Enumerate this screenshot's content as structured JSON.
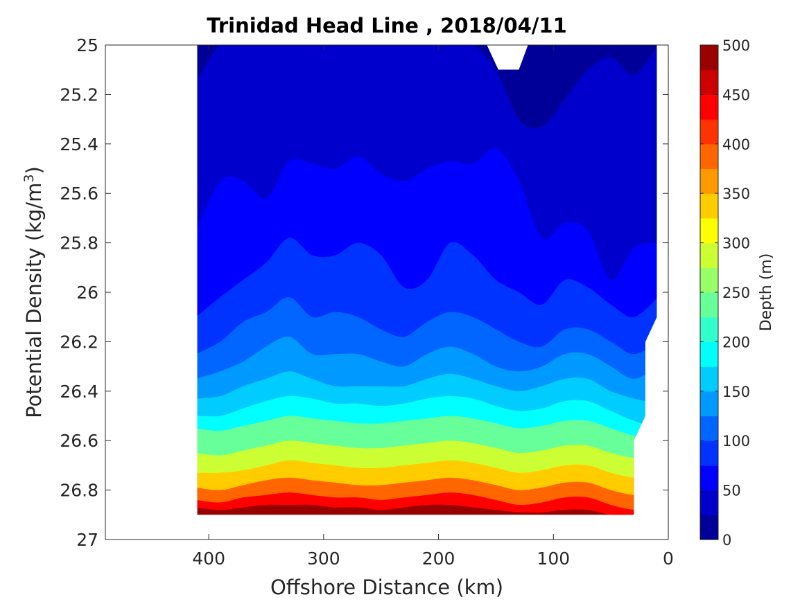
{
  "chart_data": {
    "type": "contour",
    "title": "Trinidad Head Line , 2018/04/11",
    "xlabel": "Offshore Distance (km)",
    "ylabel": "Potential Density (kg/m",
    "ylabel_sup": "3",
    "ylabel_close": ")",
    "xlim": [
      490,
      0
    ],
    "ylim": [
      25,
      27
    ],
    "y_reversed": true,
    "x_reversed": true,
    "x_ticks": [
      "400",
      "300",
      "200",
      "100",
      "0"
    ],
    "y_ticks": [
      "25",
      "25.2",
      "25.4",
      "25.6",
      "25.8",
      "26",
      "26.2",
      "26.4",
      "26.6",
      "26.8",
      "27"
    ],
    "data_extent": {
      "x": [
        410,
        10
      ],
      "y": [
        25,
        26.9
      ]
    },
    "colorbar": {
      "label": "Depth (m)",
      "ticks": [
        "0",
        "50",
        "100",
        "150",
        "200",
        "250",
        "300",
        "350",
        "400",
        "450",
        "500"
      ],
      "range": [
        0,
        500
      ],
      "levels": 20,
      "colormap": "jet"
    },
    "stations_km": [
      410,
      390,
      370,
      350,
      330,
      310,
      290,
      270,
      250,
      230,
      210,
      190,
      170,
      150,
      130,
      110,
      90,
      70,
      50,
      30,
      10
    ],
    "contours": [
      {
        "depth": 25,
        "y": [
          25.15,
          25.0,
          25.0,
          25.0,
          25.0,
          25.0,
          25.0,
          25.0,
          25.0,
          25.0,
          25.0,
          25.0,
          25.0,
          25.1,
          25.3,
          25.33,
          25.22,
          25.1,
          25.05,
          25.12,
          25.0
        ]
      },
      {
        "depth": 50,
        "y": [
          25.75,
          25.55,
          25.55,
          25.62,
          25.47,
          25.48,
          25.5,
          25.45,
          25.52,
          25.55,
          25.5,
          25.47,
          25.48,
          25.42,
          25.55,
          25.78,
          25.72,
          25.75,
          25.95,
          25.82,
          25.8
        ]
      },
      {
        "depth": 75,
        "y": [
          26.1,
          26.02,
          25.95,
          25.88,
          25.78,
          25.85,
          25.85,
          25.8,
          25.85,
          25.98,
          25.95,
          25.8,
          25.85,
          25.95,
          26.0,
          26.05,
          25.95,
          25.98,
          26.05,
          26.1,
          26.02
        ]
      },
      {
        "depth": 100,
        "y": [
          26.25,
          26.2,
          26.12,
          26.08,
          26.02,
          26.1,
          26.08,
          26.1,
          26.15,
          26.18,
          26.12,
          26.08,
          26.1,
          26.15,
          26.2,
          26.22,
          26.15,
          26.15,
          26.2,
          26.25,
          26.2
        ]
      },
      {
        "depth": 125,
        "y": [
          26.35,
          26.32,
          26.28,
          26.22,
          26.18,
          26.25,
          26.25,
          26.25,
          26.28,
          26.3,
          26.25,
          26.22,
          26.25,
          26.3,
          26.32,
          26.3,
          26.25,
          26.25,
          26.3,
          26.35,
          26.3
        ]
      },
      {
        "depth": 150,
        "y": [
          26.43,
          26.42,
          26.38,
          26.35,
          26.32,
          26.35,
          26.38,
          26.38,
          26.38,
          26.38,
          26.35,
          26.33,
          26.35,
          26.38,
          26.4,
          26.38,
          26.35,
          26.35,
          26.4,
          26.43,
          26.45
        ]
      },
      {
        "depth": 175,
        "y": [
          26.5,
          26.5,
          26.47,
          26.44,
          26.42,
          26.43,
          26.45,
          26.45,
          26.46,
          26.45,
          26.43,
          26.42,
          26.43,
          26.46,
          26.48,
          26.47,
          26.44,
          26.44,
          26.48,
          26.52,
          26.55
        ]
      },
      {
        "depth": 200,
        "y": [
          26.55,
          26.56,
          26.54,
          26.52,
          26.5,
          26.51,
          26.52,
          26.53,
          26.53,
          26.52,
          26.51,
          26.5,
          26.51,
          26.53,
          26.55,
          26.54,
          26.52,
          26.52,
          26.55,
          26.58,
          26.6
        ]
      },
      {
        "depth": 250,
        "y": [
          26.65,
          26.66,
          26.64,
          26.62,
          26.6,
          26.61,
          26.62,
          26.63,
          26.63,
          26.62,
          26.61,
          26.6,
          26.61,
          26.63,
          26.65,
          26.64,
          26.62,
          26.62,
          26.65,
          26.67,
          26.67
        ]
      },
      {
        "depth": 300,
        "y": [
          26.73,
          26.73,
          26.72,
          26.7,
          26.68,
          26.69,
          26.7,
          26.71,
          26.71,
          26.7,
          26.69,
          26.68,
          26.69,
          26.71,
          26.73,
          26.72,
          26.7,
          26.7,
          26.73,
          26.75,
          26.75
        ]
      },
      {
        "depth": 350,
        "y": [
          26.79,
          26.8,
          26.78,
          26.76,
          26.75,
          26.76,
          26.77,
          26.78,
          26.78,
          26.77,
          26.76,
          26.75,
          26.76,
          26.78,
          26.8,
          26.79,
          26.77,
          26.77,
          26.8,
          26.82,
          26.82
        ]
      },
      {
        "depth": 400,
        "y": [
          26.84,
          26.85,
          26.83,
          26.82,
          26.81,
          26.82,
          26.83,
          26.83,
          26.84,
          26.83,
          26.82,
          26.81,
          26.82,
          26.84,
          26.86,
          26.85,
          26.83,
          26.83,
          26.86,
          26.88,
          26.88
        ]
      },
      {
        "depth": 450,
        "y": [
          26.87,
          26.88,
          26.87,
          26.86,
          26.86,
          26.86,
          26.87,
          26.87,
          26.88,
          26.87,
          26.86,
          26.86,
          26.87,
          26.88,
          26.89,
          26.89,
          26.88,
          26.88,
          26.9,
          26.9,
          26.9
        ]
      }
    ],
    "bottom_edge": [
      {
        "km": 410,
        "y": 26.9
      },
      {
        "km": 30,
        "y": 26.9
      },
      {
        "km": 30,
        "y": 26.6
      },
      {
        "km": 20,
        "y": 26.5
      },
      {
        "km": 20,
        "y": 26.2
      },
      {
        "km": 10,
        "y": 26.1
      },
      {
        "km": 10,
        "y": 25.0
      }
    ],
    "top_gap": [
      {
        "km": 158,
        "y": 25.0
      },
      {
        "km": 148,
        "y": 25.1
      },
      {
        "km": 130,
        "y": 25.1
      },
      {
        "km": 122,
        "y": 25.0
      }
    ]
  }
}
